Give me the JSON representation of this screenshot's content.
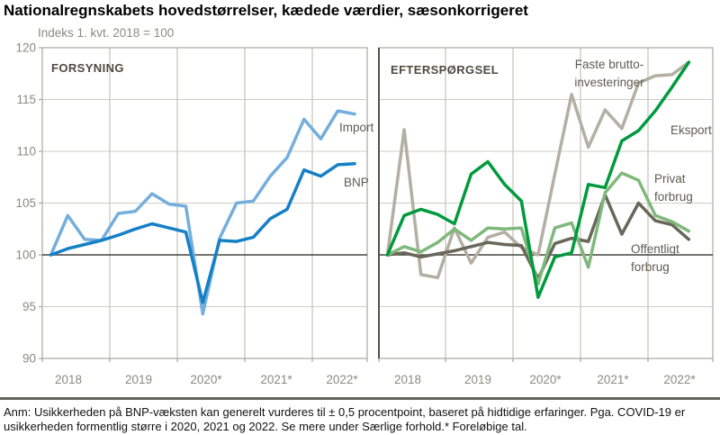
{
  "header": {
    "title": "Nationalregnskabets hovedstørrelser, kædede værdier, sæsonkorrigeret"
  },
  "chart_data": {
    "type": "line",
    "subtitle": "Indeks 1. kvt. 2018 = 100",
    "x_quarters": [
      "2018K1",
      "2018K2",
      "2018K3",
      "2018K4",
      "2019K1",
      "2019K2",
      "2019K3",
      "2019K4",
      "2020K1",
      "2020K2",
      "2020K3",
      "2020K4",
      "2021K1",
      "2021K2",
      "2021K3",
      "2021K4",
      "2022K1",
      "2022K2",
      "2022K3"
    ],
    "x_tick_labels": [
      "2018",
      "2019",
      "2020*",
      "2021*",
      "2022*"
    ],
    "ylim": [
      90,
      120
    ],
    "yticks": [
      90,
      95,
      100,
      105,
      110,
      115,
      120
    ],
    "baseline_value": 100,
    "grid": true,
    "legend_position": "inline-labels",
    "panels": [
      {
        "title": "FORSYNING",
        "title_pos": {
          "x": 57,
          "y": 80
        },
        "series": [
          {
            "name": "Import",
            "color": "#74aedd",
            "label": {
              "lines": [
                "Import"
              ],
              "x": 377,
              "y": 146,
              "anchor": "start"
            },
            "values": [
              100,
              103.8,
              101.5,
              101.4,
              104.0,
              104.2,
              105.9,
              104.9,
              104.7,
              94.3,
              101.6,
              105.0,
              105.2,
              107.6,
              109.4,
              113.1,
              111.2,
              113.9,
              113.6
            ]
          },
          {
            "name": "BNP",
            "color": "#1580c6",
            "label": {
              "lines": [
                "BNP"
              ],
              "x": 382,
              "y": 207,
              "anchor": "start"
            },
            "values": [
              100,
              100.6,
              101.0,
              101.4,
              101.9,
              102.5,
              103.0,
              102.6,
              102.2,
              95.4,
              101.4,
              101.3,
              101.7,
              103.5,
              104.4,
              108.2,
              107.6,
              108.7,
              108.8
            ]
          }
        ]
      },
      {
        "title": "EFTERSPØRGSEL",
        "title_pos": {
          "x": 434,
          "y": 82
        },
        "series": [
          {
            "name": "Faste bruttoinvesteringer",
            "color": "#b3afa2",
            "label": {
              "lines": [
                "Faste brutto-",
                "investeringer"
              ],
              "x": 677,
              "y": 76,
              "line_height": 20,
              "anchor": "middle"
            },
            "values": [
              100,
              112.1,
              98.1,
              97.8,
              102.6,
              99.2,
              101.7,
              102.2,
              100.7,
              100.0,
              107.8,
              115.5,
              110.4,
              114.0,
              112.2,
              116.6,
              117.3,
              117.4,
              118.6
            ]
          },
          {
            "name": "Offentligt forbrug",
            "color": "#686759",
            "label": {
              "lines": [
                "Offentligt",
                "forbrug"
              ],
              "x": 701,
              "y": 281,
              "line_height": 20,
              "anchor": "start"
            },
            "values": [
              100,
              100.2,
              99.8,
              100.1,
              100.4,
              100.8,
              101.2,
              101.0,
              100.9,
              97.7,
              101.1,
              101.6,
              101.3,
              105.8,
              102.0,
              105.0,
              103.3,
              102.9,
              101.5
            ]
          },
          {
            "name": "Privat forbrug",
            "color": "#7fb87b",
            "label": {
              "lines": [
                "Privat",
                "forbrug"
              ],
              "x": 727,
              "y": 203,
              "line_height": 20,
              "anchor": "start"
            },
            "values": [
              100,
              100.8,
              100.3,
              101.2,
              102.5,
              101.4,
              102.6,
              102.5,
              102.6,
              97.2,
              102.6,
              103.1,
              98.8,
              106.0,
              107.9,
              107.2,
              103.8,
              103.2,
              102.3
            ]
          },
          {
            "name": "Eksport",
            "color": "#009a3d",
            "label": {
              "lines": [
                "Eksport"
              ],
              "x": 745,
              "y": 149,
              "anchor": "start"
            },
            "values": [
              100,
              103.8,
              104.4,
              103.9,
              103.0,
              107.8,
              109.0,
              106.8,
              105.2,
              95.9,
              99.8,
              100.2,
              106.8,
              106.5,
              111.0,
              112.0,
              113.9,
              116.2,
              118.6
            ]
          }
        ]
      }
    ],
    "colors": {
      "grid": "#cdcdc5",
      "year_grid": "#b7b7ae",
      "axis_box": "#a8a89f",
      "baseline": "#45453e",
      "divider": "#53524a",
      "tick_text": "#8b8a81",
      "label_text": "#5d5c52",
      "panel_title_text": "#4c4b41"
    }
  },
  "footnote": {
    "line1": "Anm: Usikkerheden på BNP-væksten kan generelt vurderes til ± 0,5 procentpoint, baseret på hidtidige erfaringer. Pga. COVID-19 er",
    "line2": "usikkerheden formentlig større i 2020, 2021 og 2022. Se mere under Særlige forhold.* Foreløbige tal."
  }
}
